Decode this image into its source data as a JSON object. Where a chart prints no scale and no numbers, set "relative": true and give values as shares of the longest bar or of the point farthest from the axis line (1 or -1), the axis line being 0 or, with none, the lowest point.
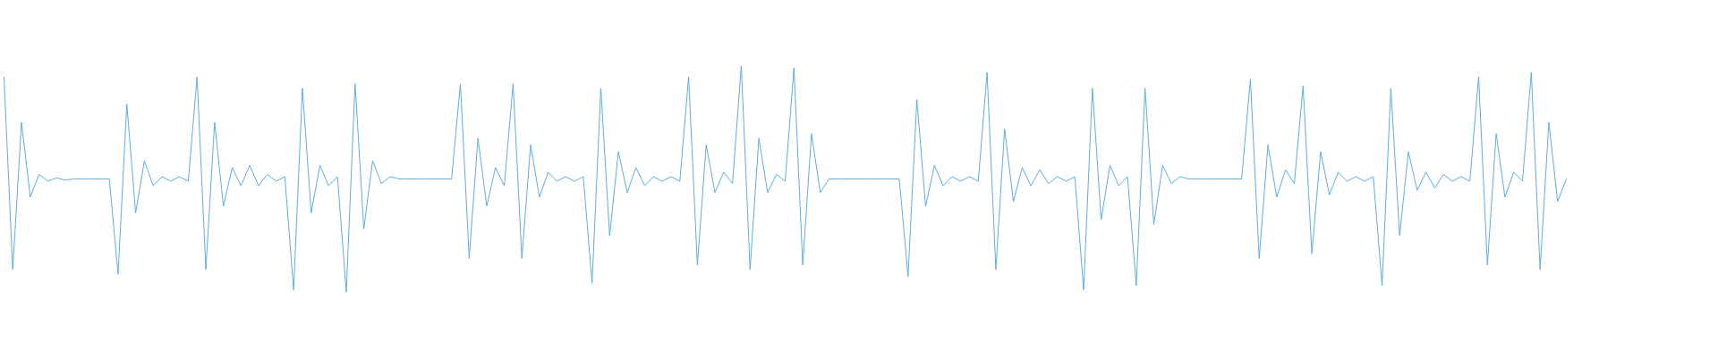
{
  "chart_data": {
    "type": "line",
    "relative": true,
    "categories": [
      null,
      null,
      null,
      null,
      null,
      null,
      null,
      null,
      null,
      null,
      null,
      null,
      null,
      null,
      null,
      null,
      null,
      null,
      null,
      null,
      null,
      null,
      null,
      null,
      null,
      null,
      null,
      null,
      null,
      null,
      null,
      null,
      null,
      null,
      null,
      null,
      null,
      null,
      null,
      null,
      null,
      null,
      null,
      null,
      null,
      null,
      null,
      null,
      null,
      null,
      null,
      null,
      null,
      null,
      null,
      null,
      null,
      null,
      null,
      null,
      null,
      null,
      null,
      null,
      null,
      null,
      null,
      null,
      null,
      null,
      null,
      null,
      null,
      null,
      null,
      null,
      null,
      null,
      null,
      null,
      null,
      null,
      null,
      null,
      null,
      null,
      null,
      null,
      null,
      null,
      null,
      null,
      null,
      null,
      null,
      null,
      null,
      null,
      null,
      null,
      null,
      null,
      null,
      null,
      null,
      null,
      null,
      null,
      null,
      null,
      null,
      null,
      null,
      null,
      null,
      null,
      null,
      null,
      null,
      null,
      null,
      null,
      null,
      null,
      null,
      null,
      null,
      null,
      null,
      null,
      null,
      null,
      null,
      null,
      null,
      null,
      null,
      null,
      null,
      null,
      null,
      null,
      null,
      null,
      null,
      null,
      null,
      null,
      null,
      null,
      null,
      null,
      null,
      null,
      null,
      null,
      null,
      null,
      null,
      null,
      null,
      null,
      null,
      null,
      null,
      null,
      null,
      null,
      null,
      null,
      null,
      null,
      null,
      null,
      null,
      null,
      null,
      null,
      null
    ],
    "series": [
      {
        "color": "#5dade2",
        "values": [
          0.95,
          0.1,
          0.75,
          0.42,
          0.52,
          0.49,
          0.505,
          0.495,
          0.5,
          0.5,
          0.5,
          0.5,
          0.5,
          0.08,
          0.83,
          0.35,
          0.58,
          0.47,
          0.51,
          0.49,
          0.51,
          0.49,
          0.95,
          0.1,
          0.75,
          0.38,
          0.55,
          0.47,
          0.56,
          0.47,
          0.52,
          0.49,
          0.51,
          0.01,
          0.9,
          0.35,
          0.56,
          0.47,
          0.51,
          0.0,
          0.92,
          0.28,
          0.58,
          0.48,
          0.51,
          0.5,
          0.5,
          0.5,
          0.5,
          0.5,
          0.5,
          0.5,
          0.92,
          0.15,
          0.68,
          0.38,
          0.55,
          0.47,
          0.92,
          0.15,
          0.65,
          0.42,
          0.53,
          0.49,
          0.51,
          0.49,
          0.51,
          0.04,
          0.9,
          0.25,
          0.62,
          0.44,
          0.55,
          0.47,
          0.51,
          0.49,
          0.51,
          0.49,
          0.95,
          0.12,
          0.65,
          0.44,
          0.53,
          0.48,
          1.0,
          0.1,
          0.68,
          0.44,
          0.52,
          0.49,
          0.99,
          0.12,
          0.7,
          0.44,
          0.5,
          0.5,
          0.5,
          0.5,
          0.5,
          0.5,
          0.5,
          0.5,
          0.5,
          0.07,
          0.85,
          0.38,
          0.56,
          0.47,
          0.51,
          0.49,
          0.51,
          0.49,
          0.97,
          0.1,
          0.72,
          0.4,
          0.55,
          0.47,
          0.54,
          0.48,
          0.51,
          0.49,
          0.51,
          0.01,
          0.9,
          0.32,
          0.56,
          0.47,
          0.51,
          0.03,
          0.9,
          0.3,
          0.56,
          0.48,
          0.51,
          0.5,
          0.5,
          0.5,
          0.5,
          0.5,
          0.5,
          0.5,
          0.94,
          0.15,
          0.65,
          0.42,
          0.54,
          0.48,
          0.91,
          0.17,
          0.62,
          0.43,
          0.53,
          0.49,
          0.51,
          0.49,
          0.51,
          0.03,
          0.9,
          0.25,
          0.62,
          0.45,
          0.53,
          0.46,
          0.52,
          0.49,
          0.51,
          0.49,
          0.95,
          0.12,
          0.7,
          0.42,
          0.53,
          0.49,
          0.97,
          0.1,
          0.75,
          0.4,
          0.5
        ]
      }
    ]
  }
}
